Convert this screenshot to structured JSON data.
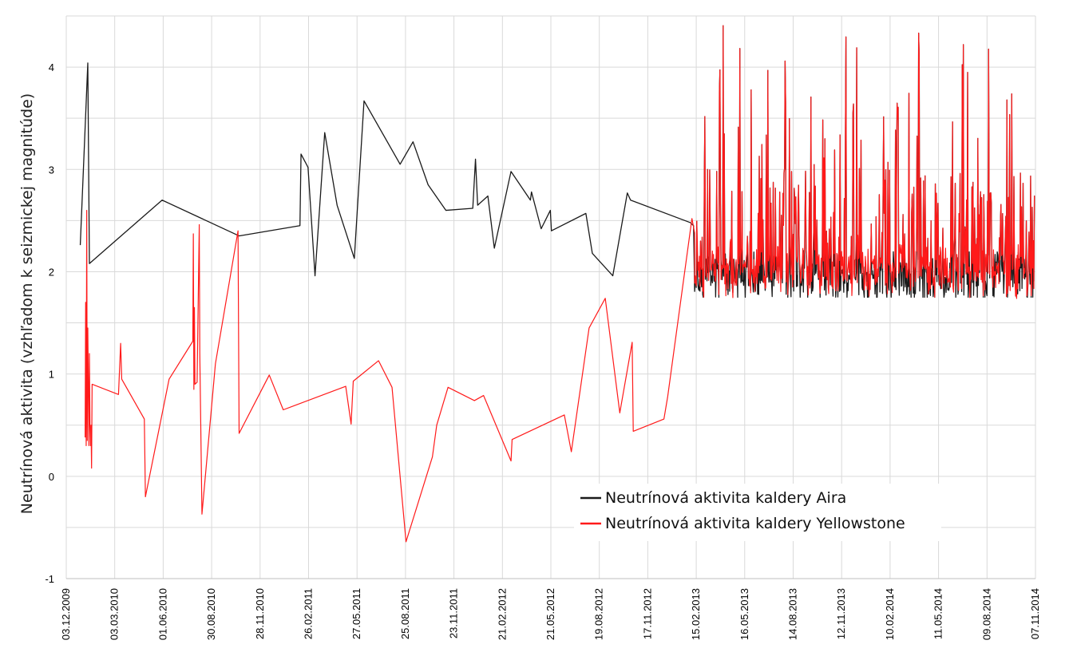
{
  "chart_data": {
    "type": "line",
    "title": "",
    "xlabel": "",
    "ylabel": "Neutrínová aktivita (vzhľadom k seizmickej magnitúde)",
    "ylim": [
      -1,
      4.5
    ],
    "yticks": [
      -1,
      0,
      1,
      2,
      3,
      4
    ],
    "xlim": [
      "2009-12-03",
      "2014-11-07"
    ],
    "x_tick_labels": [
      "03.12.2009",
      "03.03.2010",
      "01.06.2010",
      "30.08.2010",
      "28.11.2010",
      "26.02.2011",
      "27.05.2011",
      "25.08.2011",
      "23.11.2011",
      "21.02.2012",
      "21.05.2012",
      "19.08.2012",
      "17.11.2012",
      "15.02.2013",
      "16.05.2013",
      "14.08.2013",
      "12.11.2013",
      "10.02.2014",
      "11.05.2014",
      "09.08.2014",
      "07.11.2014"
    ],
    "grid": true,
    "legend": {
      "position": "bottom-right"
    },
    "series": [
      {
        "name": "Neutrínová aktivita kaldery Aira",
        "color": "#1a1a1a",
        "points": [
          [
            "2009-12-29",
            2.26
          ],
          [
            "2010-01-12",
            4.04
          ],
          [
            "2010-01-15",
            2.08
          ],
          [
            "2010-05-30",
            2.7
          ],
          [
            "2010-10-20",
            2.35
          ],
          [
            "2011-02-10",
            2.45
          ],
          [
            "2011-02-12",
            3.15
          ],
          [
            "2011-02-25",
            3.02
          ],
          [
            "2011-03-10",
            1.96
          ],
          [
            "2011-03-28",
            3.36
          ],
          [
            "2011-04-20",
            2.65
          ],
          [
            "2011-05-22",
            2.13
          ],
          [
            "2011-06-09",
            3.67
          ],
          [
            "2011-08-15",
            3.05
          ],
          [
            "2011-09-08",
            3.27
          ],
          [
            "2011-10-06",
            2.85
          ],
          [
            "2011-11-08",
            2.6
          ],
          [
            "2011-12-28",
            2.62
          ],
          [
            "2012-01-02",
            3.1
          ],
          [
            "2012-01-06",
            2.65
          ],
          [
            "2012-01-25",
            2.74
          ],
          [
            "2012-02-06",
            2.23
          ],
          [
            "2012-03-08",
            2.98
          ],
          [
            "2012-04-13",
            2.7
          ],
          [
            "2012-04-15",
            2.78
          ],
          [
            "2012-05-03",
            2.42
          ],
          [
            "2012-05-20",
            2.6
          ],
          [
            "2012-05-22",
            2.4
          ],
          [
            "2012-07-25",
            2.57
          ],
          [
            "2012-08-06",
            2.18
          ],
          [
            "2012-09-13",
            1.96
          ],
          [
            "2012-10-10",
            2.77
          ],
          [
            "2012-10-16",
            2.7
          ],
          [
            "2013-02-04",
            2.48
          ],
          [
            "2013-02-10",
            2.45
          ]
        ],
        "dense_segment": {
          "x_start": "2013-02-12",
          "x_end": "2014-11-05",
          "y_base": 1.95,
          "y_min": 1.75,
          "y_max": 4.42
        }
      },
      {
        "name": "Neutrínová aktivita kaldery Yellowstone",
        "color": "#ff1a1a",
        "points": [
          [
            "2010-01-07",
            0.38
          ],
          [
            "2010-01-08",
            1.7
          ],
          [
            "2010-01-09",
            0.3
          ],
          [
            "2010-01-10",
            2.6
          ],
          [
            "2010-01-11",
            0.35
          ],
          [
            "2010-01-12",
            1.45
          ],
          [
            "2010-01-14",
            0.3
          ],
          [
            "2010-01-15",
            1.2
          ],
          [
            "2010-01-16",
            0.5
          ],
          [
            "2010-01-17",
            0.3
          ],
          [
            "2010-01-18",
            0.5
          ],
          [
            "2010-01-19",
            0.08
          ],
          [
            "2010-01-20",
            0.9
          ],
          [
            "2010-03-10",
            0.8
          ],
          [
            "2010-03-14",
            1.3
          ],
          [
            "2010-03-16",
            0.95
          ],
          [
            "2010-04-27",
            0.56
          ],
          [
            "2010-04-29",
            -0.2
          ],
          [
            "2010-06-12",
            0.95
          ],
          [
            "2010-07-26",
            1.32
          ],
          [
            "2010-07-27",
            2.37
          ],
          [
            "2010-07-28",
            0.85
          ],
          [
            "2010-07-29",
            1.65
          ],
          [
            "2010-07-30",
            0.9
          ],
          [
            "2010-08-03",
            0.92
          ],
          [
            "2010-08-07",
            2.46
          ],
          [
            "2010-08-08",
            1.2
          ],
          [
            "2010-08-12",
            -0.37
          ],
          [
            "2010-09-06",
            1.1
          ],
          [
            "2010-10-18",
            2.4
          ],
          [
            "2010-10-20",
            0.42
          ],
          [
            "2010-12-15",
            0.99
          ],
          [
            "2011-01-10",
            0.65
          ],
          [
            "2011-05-06",
            0.88
          ],
          [
            "2011-05-16",
            0.51
          ],
          [
            "2011-05-20",
            0.93
          ],
          [
            "2011-07-06",
            1.13
          ],
          [
            "2011-07-31",
            0.87
          ],
          [
            "2011-08-26",
            -0.64
          ],
          [
            "2011-10-14",
            0.19
          ],
          [
            "2011-10-22",
            0.5
          ],
          [
            "2011-11-12",
            0.87
          ],
          [
            "2011-12-31",
            0.74
          ],
          [
            "2012-01-17",
            0.79
          ],
          [
            "2012-03-08",
            0.15
          ],
          [
            "2012-03-10",
            0.36
          ],
          [
            "2012-06-15",
            0.6
          ],
          [
            "2012-06-28",
            0.24
          ],
          [
            "2012-07-31",
            1.45
          ],
          [
            "2012-08-30",
            1.74
          ],
          [
            "2012-09-26",
            0.62
          ],
          [
            "2012-10-19",
            1.31
          ],
          [
            "2012-10-21",
            0.44
          ],
          [
            "2012-12-17",
            0.56
          ],
          [
            "2012-12-24",
            0.78
          ],
          [
            "2013-02-07",
            2.52
          ],
          [
            "2013-02-12",
            2.38
          ]
        ],
        "dense_segment": {
          "x_start": "2013-02-12",
          "x_end": "2014-11-05",
          "y_base": 2.02,
          "y_min": 1.68,
          "y_max": 4.42
        }
      }
    ]
  }
}
